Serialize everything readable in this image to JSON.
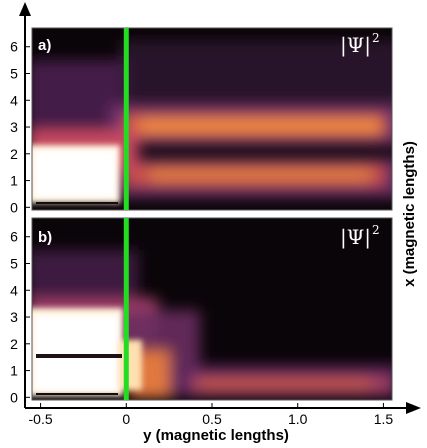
{
  "chart_data": [
    {
      "type": "heatmap",
      "panel_label": "a)",
      "quantity_label": "|Ψ|",
      "quantity_power": "2",
      "x_range": [
        -0.55,
        1.55
      ],
      "y_range": [
        -0.1,
        6.7
      ],
      "barrier_at": 0,
      "features": [
        {
          "kind": "bright-block",
          "x": [
            -0.55,
            0.0
          ],
          "y": [
            0.1,
            2.1
          ],
          "level": 1.0
        },
        {
          "kind": "stripe",
          "x_from": 0.1,
          "y": 2.6,
          "width": 0.35,
          "level": 0.62
        },
        {
          "kind": "stripe",
          "x_from": 0.1,
          "y": 1.1,
          "width": 0.35,
          "level": 0.62
        },
        {
          "kind": "diffuse",
          "y_center": 2.6,
          "level": 0.35
        }
      ]
    },
    {
      "type": "heatmap",
      "panel_label": "b)",
      "quantity_label": "|Ψ|",
      "quantity_power": "2",
      "x_range": [
        -0.55,
        1.55
      ],
      "y_range": [
        -0.1,
        6.7
      ],
      "barrier_at": 0,
      "features": [
        {
          "kind": "bright-block",
          "x": [
            -0.55,
            0.0
          ],
          "y": [
            0.1,
            3.3
          ],
          "level": 1.0
        },
        {
          "kind": "dark-line",
          "y": 1.5
        },
        {
          "kind": "stripe",
          "x_from": 0.1,
          "y": 0.5,
          "width": 0.35,
          "level": 0.5
        }
      ]
    }
  ],
  "axes": {
    "x_ticks": [
      "-0.5",
      "0",
      "0.5",
      "1.0",
      "1.5"
    ],
    "x_tick_values": [
      -0.5,
      0,
      0.5,
      1.0,
      1.5
    ],
    "y_ticks": [
      "0",
      "1",
      "2",
      "3",
      "4",
      "5",
      "6"
    ],
    "y_tick_values": [
      0,
      1,
      2,
      3,
      4,
      5,
      6
    ],
    "xlabel": "y (magnetic lengths)",
    "ylabel": "x (magnetic lengths)"
  },
  "colors": {
    "barrier": "#22dd22",
    "background": "#000000",
    "colormap": [
      "#000000",
      "#2a1030",
      "#5a2a6a",
      "#8a3878",
      "#c04a60",
      "#f07830",
      "#f8b060",
      "#ffffff"
    ]
  }
}
